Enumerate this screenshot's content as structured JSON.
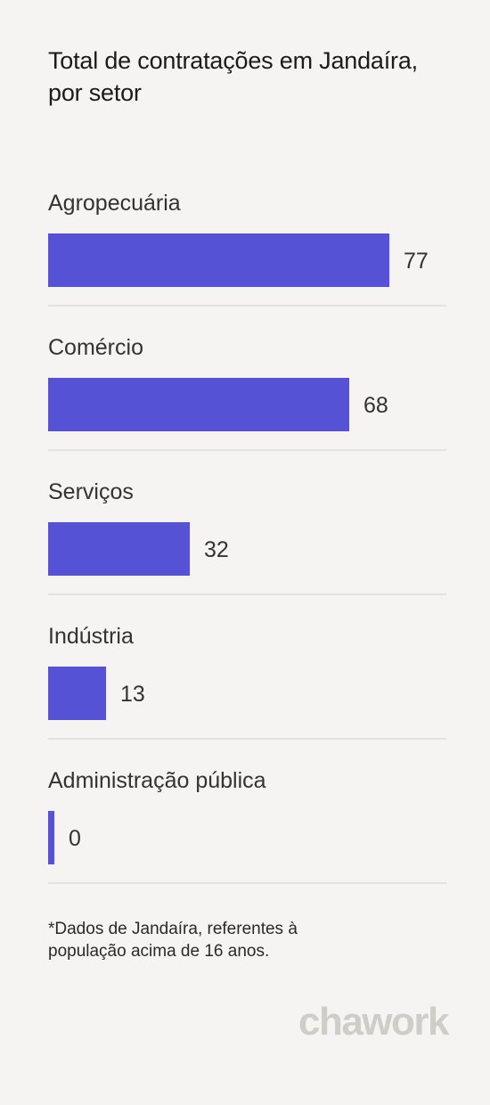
{
  "title": "Total de contratações em Jandaíra, por setor",
  "footnote": "*Dados de Jandaíra, referentes à população acima de 16 anos.",
  "logo": "chawork",
  "colors": {
    "background": "#f5f4f2",
    "bar": "#5652d6",
    "divider": "#e3e2df",
    "logo": "#cfcdc7"
  },
  "chart_data": {
    "type": "bar",
    "orientation": "horizontal",
    "title": "Total de contratações em Jandaíra, por setor",
    "categories": [
      "Agropecuária",
      "Comércio",
      "Serviços",
      "Indústria",
      "Administração pública"
    ],
    "values": [
      77,
      68,
      32,
      13,
      0
    ],
    "xlim": [
      0,
      77
    ],
    "grid": false,
    "legend": "none"
  }
}
